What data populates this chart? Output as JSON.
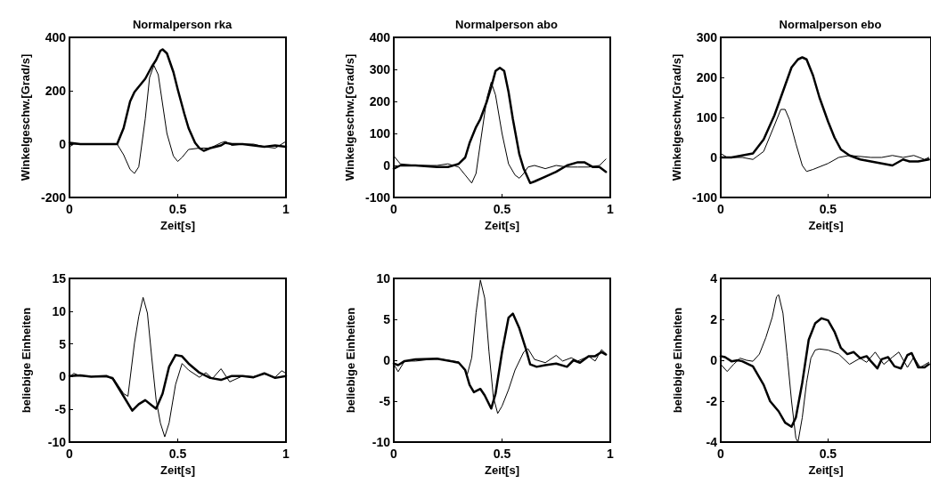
{
  "chart_data": [
    {
      "type": "line",
      "title": "Normalperson rka",
      "xlabel": "Zeit[s]",
      "ylabel": "Winkelgeschw.[Grad/s]",
      "xlim": [
        0,
        1
      ],
      "xticks": [
        0,
        0.5,
        1
      ],
      "ylim": [
        -200,
        400
      ],
      "yticks": [
        -200,
        0,
        200,
        400
      ],
      "series": [
        {
          "color": "#000000",
          "x": [
            0,
            0.05,
            0.1,
            0.15,
            0.2,
            0.22,
            0.25,
            0.28,
            0.3,
            0.35,
            0.38,
            0.4,
            0.42,
            0.43,
            0.45,
            0.48,
            0.5,
            0.53,
            0.55,
            0.58,
            0.6,
            0.62,
            0.65,
            0.7,
            0.72,
            0.75,
            0.8,
            0.85,
            0.9,
            0.95,
            1
          ],
          "values": [
            5,
            0,
            0,
            0,
            0,
            0,
            60,
            160,
            195,
            245,
            290,
            315,
            350,
            355,
            340,
            270,
            205,
            115,
            60,
            5,
            -15,
            -25,
            -15,
            -5,
            5,
            0,
            0,
            -5,
            -10,
            -5,
            -10
          ]
        },
        {
          "color": "#000000",
          "x": [
            0,
            0.02,
            0.05,
            0.1,
            0.15,
            0.2,
            0.22,
            0.25,
            0.28,
            0.3,
            0.32,
            0.35,
            0.37,
            0.39,
            0.41,
            0.43,
            0.45,
            0.48,
            0.5,
            0.52,
            0.55,
            0.6,
            0.65,
            0.7,
            0.72,
            0.75,
            0.8,
            0.85,
            0.9,
            0.95,
            1
          ],
          "values": [
            -10,
            0,
            0,
            0,
            0,
            0,
            0,
            -40,
            -95,
            -110,
            -85,
            95,
            250,
            295,
            260,
            150,
            40,
            -45,
            -65,
            -50,
            -20,
            -15,
            -15,
            5,
            10,
            -5,
            0,
            0,
            -10,
            -15,
            10
          ]
        }
      ]
    },
    {
      "type": "line",
      "title": "Normalperson abo",
      "xlabel": "Zeit[s]",
      "ylabel": "Winkelgeschw.[Grad/s]",
      "xlim": [
        0,
        1
      ],
      "xticks": [
        0,
        0.5,
        1
      ],
      "ylim": [
        -100,
        400
      ],
      "yticks": [
        -100,
        0,
        100,
        200,
        300,
        400
      ],
      "series": [
        {
          "color": "#000000",
          "x": [
            0,
            0.03,
            0.1,
            0.2,
            0.25,
            0.3,
            0.33,
            0.35,
            0.38,
            0.4,
            0.43,
            0.45,
            0.47,
            0.49,
            0.51,
            0.53,
            0.55,
            0.58,
            0.6,
            0.63,
            0.65,
            0.7,
            0.75,
            0.8,
            0.85,
            0.88,
            0.92,
            0.95,
            0.98
          ],
          "values": [
            -10,
            0,
            0,
            -5,
            -5,
            5,
            25,
            70,
            120,
            145,
            200,
            245,
            295,
            305,
            295,
            230,
            145,
            35,
            -10,
            -55,
            -50,
            -35,
            -20,
            0,
            10,
            10,
            -5,
            -5,
            -20
          ]
        },
        {
          "color": "#000000",
          "x": [
            0,
            0.03,
            0.1,
            0.2,
            0.25,
            0.3,
            0.33,
            0.36,
            0.38,
            0.4,
            0.43,
            0.45,
            0.47,
            0.5,
            0.53,
            0.56,
            0.58,
            0.6,
            0.62,
            0.65,
            0.7,
            0.75,
            0.8,
            0.85,
            0.9,
            0.95,
            0.98
          ],
          "values": [
            30,
            5,
            0,
            0,
            5,
            -5,
            -30,
            -55,
            -25,
            70,
            210,
            260,
            220,
            100,
            5,
            -30,
            -40,
            -25,
            -5,
            0,
            -10,
            0,
            -5,
            -5,
            -5,
            0,
            20
          ]
        }
      ]
    },
    {
      "type": "line",
      "title": "Normalperson ebo",
      "xlabel": "Zeit[s]",
      "ylabel": "Winkelgeschw.[Grad/s]",
      "xlim": [
        0,
        0.98
      ],
      "xticks": [
        0,
        0.5
      ],
      "ylim": [
        -100,
        300
      ],
      "yticks": [
        -100,
        0,
        100,
        200,
        300
      ],
      "series": [
        {
          "color": "#000000",
          "x": [
            0,
            0.05,
            0.1,
            0.15,
            0.2,
            0.25,
            0.3,
            0.33,
            0.36,
            0.38,
            0.4,
            0.43,
            0.46,
            0.5,
            0.53,
            0.56,
            0.6,
            0.65,
            0.7,
            0.75,
            0.8,
            0.85,
            0.88,
            0.92,
            0.97
          ],
          "values": [
            0,
            0,
            5,
            10,
            45,
            105,
            180,
            225,
            245,
            250,
            245,
            205,
            150,
            90,
            50,
            20,
            5,
            -5,
            -10,
            -15,
            -20,
            -5,
            -10,
            -10,
            -5
          ]
        },
        {
          "color": "#000000",
          "x": [
            0,
            0.03,
            0.1,
            0.15,
            0.2,
            0.25,
            0.28,
            0.3,
            0.32,
            0.35,
            0.38,
            0.4,
            0.43,
            0.5,
            0.55,
            0.6,
            0.7,
            0.75,
            0.8,
            0.85,
            0.9,
            0.95,
            0.97
          ],
          "values": [
            10,
            0,
            0,
            -5,
            15,
            80,
            120,
            120,
            95,
            35,
            -20,
            -35,
            -30,
            -15,
            0,
            5,
            0,
            0,
            5,
            0,
            5,
            -5,
            0
          ]
        }
      ]
    },
    {
      "type": "line",
      "xlabel": "Zeit[s]",
      "ylabel": "beliebige Einheiten",
      "xlim": [
        0,
        1
      ],
      "xticks": [
        0,
        0.5,
        1
      ],
      "ylim": [
        -10,
        15
      ],
      "yticks": [
        -10,
        -5,
        0,
        5,
        10,
        15
      ],
      "series": [
        {
          "color": "#000000",
          "x": [
            0,
            0.05,
            0.1,
            0.17,
            0.2,
            0.25,
            0.29,
            0.32,
            0.35,
            0.38,
            0.4,
            0.43,
            0.46,
            0.49,
            0.52,
            0.55,
            0.6,
            0.65,
            0.7,
            0.75,
            0.8,
            0.85,
            0.9,
            0.95,
            1
          ],
          "values": [
            0.1,
            0.2,
            0,
            0.1,
            -0.3,
            -3,
            -5.2,
            -4.2,
            -3.6,
            -4.4,
            -4.9,
            -2.6,
            1.5,
            3.3,
            3.1,
            2,
            0.6,
            -0.2,
            -0.5,
            0.1,
            0.1,
            -0.1,
            0.5,
            -0.2,
            0.1
          ]
        },
        {
          "color": "#000000",
          "x": [
            0,
            0.02,
            0.05,
            0.1,
            0.2,
            0.25,
            0.27,
            0.3,
            0.32,
            0.34,
            0.36,
            0.38,
            0.4,
            0.42,
            0.44,
            0.46,
            0.49,
            0.52,
            0.55,
            0.6,
            0.63,
            0.66,
            0.7,
            0.74,
            0.8,
            0.85,
            0.9,
            0.95,
            0.98,
            1
          ],
          "values": [
            -0.1,
            0.5,
            0.1,
            0,
            -0.1,
            -2.6,
            -3,
            5.1,
            9.2,
            12.1,
            9.7,
            2.9,
            -3.5,
            -7.1,
            -9.2,
            -7.1,
            -1.2,
            2,
            1,
            -0.1,
            0.6,
            -0.3,
            1.2,
            -0.8,
            0.1,
            0,
            0.4,
            -0.1,
            0.9,
            0.5
          ]
        }
      ]
    },
    {
      "type": "line",
      "xlabel": "Zeit[s]",
      "ylabel": "beliebige Einheiten",
      "xlim": [
        0,
        1
      ],
      "xticks": [
        0,
        0.5,
        1
      ],
      "ylim": [
        -10,
        10
      ],
      "yticks": [
        -10,
        -5,
        0,
        5,
        10
      ],
      "series": [
        {
          "color": "#000000",
          "x": [
            0,
            0.02,
            0.05,
            0.1,
            0.2,
            0.3,
            0.33,
            0.35,
            0.37,
            0.4,
            0.42,
            0.45,
            0.47,
            0.5,
            0.53,
            0.55,
            0.58,
            0.61,
            0.63,
            0.66,
            0.7,
            0.75,
            0.8,
            0.83,
            0.86,
            0.9,
            0.93,
            0.96,
            0.98
          ],
          "values": [
            -0.4,
            -0.6,
            -0.1,
            0.1,
            0.2,
            -0.3,
            -1.2,
            -3,
            -3.9,
            -3.5,
            -4.3,
            -5.9,
            -4.1,
            1,
            5.2,
            5.7,
            3.9,
            1.4,
            -0.5,
            -0.8,
            -0.6,
            -0.4,
            -0.8,
            0,
            -0.3,
            0.5,
            0.5,
            1,
            0.7
          ]
        },
        {
          "color": "#000000",
          "x": [
            0,
            0.02,
            0.05,
            0.1,
            0.2,
            0.3,
            0.34,
            0.36,
            0.38,
            0.4,
            0.42,
            0.44,
            0.46,
            0.48,
            0.5,
            0.53,
            0.56,
            0.6,
            0.62,
            0.65,
            0.7,
            0.75,
            0.78,
            0.82,
            0.85,
            0.9,
            0.93,
            0.96,
            0.98
          ],
          "values": [
            -0.5,
            -1.4,
            -0.1,
            -0.1,
            0.2,
            -0.2,
            -1.7,
            0.3,
            5.8,
            9.8,
            7.6,
            1,
            -4.5,
            -6.5,
            -5.6,
            -3.6,
            -1.2,
            1,
            1.4,
            0.1,
            -0.3,
            0.6,
            -0.1,
            0.3,
            -0.1,
            0.5,
            -0.1,
            1.3,
            0.8
          ]
        }
      ]
    },
    {
      "type": "line",
      "xlabel": "Zeit[s]",
      "ylabel": "beliebige Einheiten",
      "xlim": [
        0,
        0.98
      ],
      "xticks": [
        0,
        0.5
      ],
      "ylim": [
        -4,
        4
      ],
      "yticks": [
        -4,
        -2,
        0,
        2,
        4
      ],
      "series": [
        {
          "color": "#000000",
          "x": [
            0,
            0.02,
            0.05,
            0.08,
            0.1,
            0.15,
            0.2,
            0.23,
            0.27,
            0.3,
            0.33,
            0.35,
            0.38,
            0.41,
            0.44,
            0.47,
            0.5,
            0.53,
            0.56,
            0.59,
            0.62,
            0.65,
            0.68,
            0.7,
            0.73,
            0.75,
            0.78,
            0.81,
            0.84,
            0.87,
            0.89,
            0.92,
            0.95,
            0.97
          ],
          "values": [
            0.2,
            0.15,
            -0.05,
            0,
            -0.05,
            -0.3,
            -1.2,
            -2,
            -2.5,
            -3.05,
            -3.25,
            -2.8,
            -1.1,
            1,
            1.8,
            2.05,
            1.95,
            1.4,
            0.6,
            0.3,
            0.4,
            0.1,
            0.2,
            -0.05,
            -0.4,
            0.05,
            0.15,
            -0.3,
            -0.4,
            0.25,
            0.35,
            -0.35,
            -0.35,
            -0.2
          ]
        },
        {
          "color": "#000000",
          "x": [
            0,
            0.03,
            0.06,
            0.09,
            0.12,
            0.15,
            0.18,
            0.21,
            0.24,
            0.26,
            0.27,
            0.29,
            0.31,
            0.33,
            0.35,
            0.36,
            0.38,
            0.4,
            0.42,
            0.44,
            0.46,
            0.5,
            0.55,
            0.6,
            0.65,
            0.68,
            0.72,
            0.76,
            0.8,
            0.83,
            0.87,
            0.9,
            0.93,
            0.97
          ],
          "values": [
            -0.2,
            -0.55,
            -0.2,
            0.1,
            0,
            -0.05,
            0.3,
            1.1,
            2.1,
            3.1,
            3.2,
            2.3,
            0.2,
            -2,
            -3.8,
            -4,
            -2.8,
            -1.1,
            0.1,
            0.5,
            0.55,
            0.5,
            0.3,
            -0.2,
            0.1,
            -0.1,
            0.4,
            -0.2,
            0.15,
            0.4,
            -0.35,
            0.15,
            -0.35,
            -0.1
          ]
        }
      ]
    }
  ]
}
